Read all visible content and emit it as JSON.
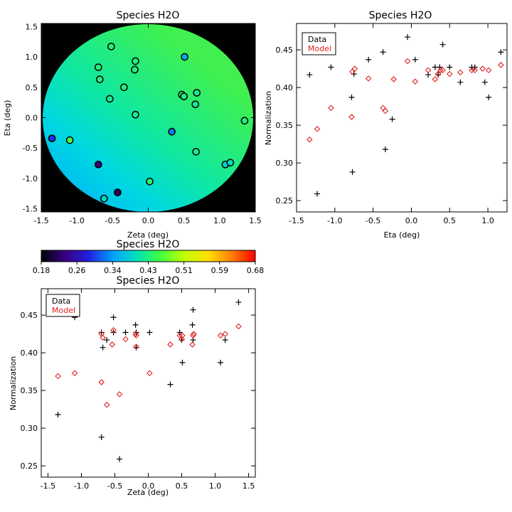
{
  "chart_data": [
    {
      "type": "scatter",
      "title": "Species H2O",
      "xlabel": "Zeta (deg)",
      "ylabel": "Eta (deg)",
      "xlim": [
        -1.5,
        1.5
      ],
      "ylim": [
        -1.55,
        1.55
      ],
      "xticks": [
        "-1.5",
        "-1.0",
        "-0.5",
        "0.0",
        "0.5",
        "1.0",
        "1.5"
      ],
      "yticks": [
        "-1.5",
        "-1.0",
        "-0.5",
        "0.0",
        "0.5",
        "1.0",
        "1.5"
      ],
      "background": "filled circular field colored by model normalization",
      "points": [
        {
          "x": -0.52,
          "y": 1.17,
          "value": 0.43
        },
        {
          "x": -0.7,
          "y": 0.83,
          "value": 0.43
        },
        {
          "x": -0.68,
          "y": 0.63,
          "value": 0.43
        },
        {
          "x": -0.18,
          "y": 0.93,
          "value": 0.43
        },
        {
          "x": -0.19,
          "y": 0.79,
          "value": 0.43
        },
        {
          "x": -0.34,
          "y": 0.5,
          "value": 0.43
        },
        {
          "x": -0.54,
          "y": 0.31,
          "value": 0.42
        },
        {
          "x": 0.51,
          "y": 1.0,
          "value": 0.36
        },
        {
          "x": 0.47,
          "y": 0.38,
          "value": 0.43
        },
        {
          "x": 0.5,
          "y": 0.35,
          "value": 0.43
        },
        {
          "x": 0.68,
          "y": 0.41,
          "value": 0.42
        },
        {
          "x": 0.66,
          "y": 0.22,
          "value": 0.42
        },
        {
          "x": -0.18,
          "y": 0.05,
          "value": 0.42
        },
        {
          "x": 1.35,
          "y": -0.05,
          "value": 0.43
        },
        {
          "x": -1.35,
          "y": -0.34,
          "value": 0.3
        },
        {
          "x": -1.1,
          "y": -0.37,
          "value": 0.46
        },
        {
          "x": 0.33,
          "y": -0.23,
          "value": 0.33
        },
        {
          "x": 0.67,
          "y": -0.56,
          "value": 0.42
        },
        {
          "x": 1.08,
          "y": -0.77,
          "value": 0.39
        },
        {
          "x": 1.15,
          "y": -0.74,
          "value": 0.4
        },
        {
          "x": -0.7,
          "y": -0.77,
          "value": 0.23
        },
        {
          "x": 0.02,
          "y": -1.05,
          "value": 0.44
        },
        {
          "x": -0.43,
          "y": -1.23,
          "value": 0.22
        },
        {
          "x": -0.62,
          "y": -1.33,
          "value": 0.4
        }
      ]
    },
    {
      "type": "scatter",
      "title": "Species H2O",
      "xlabel": "Eta (deg)",
      "ylabel": "Normalization",
      "xlim": [
        -1.5,
        1.25
      ],
      "ylim": [
        0.235,
        0.485
      ],
      "xticks": [
        "-1.5",
        "-1.0",
        "-0.5",
        "0.0",
        "0.5",
        "1.0"
      ],
      "yticks": [
        "0.25",
        "0.30",
        "0.35",
        "0.40",
        "0.45"
      ],
      "legend": [
        "Data",
        "Model"
      ],
      "legend_loc": "top-left",
      "series": [
        {
          "name": "Data",
          "marker": "plus",
          "color": "#000000",
          "points": [
            [
              -1.33,
              0.417
            ],
            [
              -1.23,
              0.259
            ],
            [
              -1.05,
              0.427
            ],
            [
              -0.78,
              0.387
            ],
            [
              -0.77,
              0.288
            ],
            [
              -0.75,
              0.418
            ],
            [
              -0.56,
              0.437
            ],
            [
              -0.37,
              0.447
            ],
            [
              -0.34,
              0.318
            ],
            [
              -0.25,
              0.358
            ],
            [
              -0.05,
              0.467
            ],
            [
              0.05,
              0.437
            ],
            [
              0.22,
              0.417
            ],
            [
              0.31,
              0.427
            ],
            [
              0.35,
              0.417
            ],
            [
              0.37,
              0.427
            ],
            [
              0.41,
              0.457
            ],
            [
              0.5,
              0.427
            ],
            [
              0.64,
              0.407
            ],
            [
              0.79,
              0.427
            ],
            [
              0.83,
              0.427
            ],
            [
              0.96,
              0.407
            ],
            [
              1.01,
              0.387
            ],
            [
              1.17,
              0.447
            ]
          ]
        },
        {
          "name": "Model",
          "marker": "diamond",
          "color": "#e02020",
          "points": [
            [
              -1.33,
              0.331
            ],
            [
              -1.23,
              0.345
            ],
            [
              -1.05,
              0.373
            ],
            [
              -0.78,
              0.361
            ],
            [
              -0.77,
              0.421
            ],
            [
              -0.74,
              0.425
            ],
            [
              -0.56,
              0.412
            ],
            [
              -0.37,
              0.373
            ],
            [
              -0.34,
              0.369
            ],
            [
              -0.23,
              0.411
            ],
            [
              -0.05,
              0.435
            ],
            [
              0.05,
              0.408
            ],
            [
              0.22,
              0.423
            ],
            [
              0.31,
              0.411
            ],
            [
              0.35,
              0.418
            ],
            [
              0.38,
              0.423
            ],
            [
              0.41,
              0.423
            ],
            [
              0.5,
              0.418
            ],
            [
              0.64,
              0.42
            ],
            [
              0.79,
              0.423
            ],
            [
              0.83,
              0.423
            ],
            [
              0.93,
              0.425
            ],
            [
              1.01,
              0.423
            ],
            [
              1.17,
              0.43
            ]
          ]
        }
      ]
    },
    {
      "type": "colorbar",
      "title": "Species H2O",
      "range": [
        0.18,
        0.68
      ],
      "ticks": [
        "0.18",
        "0.26",
        "0.34",
        "0.43",
        "0.51",
        "0.59",
        "0.68"
      ],
      "colormap": [
        "#000000",
        "#3a0080",
        "#2020e0",
        "#00a0ff",
        "#00e0c0",
        "#40ff40",
        "#c0ff00",
        "#ffe000",
        "#ff8000",
        "#ff0000"
      ]
    },
    {
      "type": "scatter",
      "title": "Species H2O",
      "xlabel": "Zeta (deg)",
      "ylabel": "Normalization",
      "xlim": [
        -1.6,
        1.6
      ],
      "ylim": [
        0.235,
        0.485
      ],
      "xticks": [
        "-1.5",
        "-1.0",
        "-0.5",
        "0.0",
        "0.5",
        "1.0",
        "1.5"
      ],
      "yticks": [
        "0.25",
        "0.30",
        "0.35",
        "0.40",
        "0.45"
      ],
      "legend": [
        "Data",
        "Model"
      ],
      "legend_loc": "top-left",
      "series": [
        {
          "name": "Data",
          "marker": "plus",
          "color": "#000000",
          "points": [
            [
              -1.35,
              0.318
            ],
            [
              -1.1,
              0.447
            ],
            [
              -0.7,
              0.427
            ],
            [
              -0.7,
              0.288
            ],
            [
              -0.68,
              0.407
            ],
            [
              -0.62,
              0.417
            ],
            [
              -0.52,
              0.447
            ],
            [
              -0.52,
              0.427
            ],
            [
              -0.43,
              0.259
            ],
            [
              -0.34,
              0.427
            ],
            [
              -0.19,
              0.437
            ],
            [
              -0.18,
              0.427
            ],
            [
              -0.18,
              0.407
            ],
            [
              0.02,
              0.427
            ],
            [
              0.33,
              0.358
            ],
            [
              0.47,
              0.427
            ],
            [
              0.5,
              0.417
            ],
            [
              0.51,
              0.387
            ],
            [
              0.66,
              0.437
            ],
            [
              0.67,
              0.417
            ],
            [
              0.67,
              0.457
            ],
            [
              1.08,
              0.387
            ],
            [
              1.15,
              0.417
            ],
            [
              1.35,
              0.467
            ]
          ]
        },
        {
          "name": "Model",
          "marker": "diamond",
          "color": "#e02020",
          "points": [
            [
              -1.35,
              0.369
            ],
            [
              -1.1,
              0.373
            ],
            [
              -0.7,
              0.361
            ],
            [
              -0.7,
              0.425
            ],
            [
              -0.68,
              0.42
            ],
            [
              -0.62,
              0.331
            ],
            [
              -0.54,
              0.411
            ],
            [
              -0.52,
              0.43
            ],
            [
              -0.43,
              0.345
            ],
            [
              -0.34,
              0.418
            ],
            [
              -0.19,
              0.425
            ],
            [
              -0.18,
              0.423
            ],
            [
              -0.18,
              0.408
            ],
            [
              0.02,
              0.373
            ],
            [
              0.33,
              0.411
            ],
            [
              0.47,
              0.423
            ],
            [
              0.5,
              0.418
            ],
            [
              0.51,
              0.423
            ],
            [
              0.66,
              0.411
            ],
            [
              0.67,
              0.423
            ],
            [
              0.68,
              0.425
            ],
            [
              1.08,
              0.423
            ],
            [
              1.15,
              0.425
            ],
            [
              1.35,
              0.435
            ]
          ]
        }
      ]
    }
  ]
}
